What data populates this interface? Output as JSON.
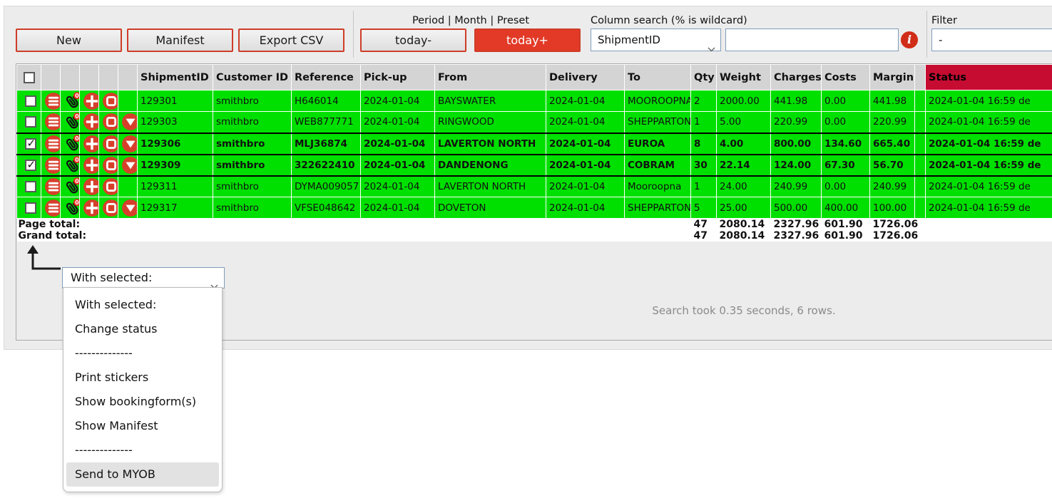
{
  "toolbar": {
    "new_label": "New",
    "manifest_label": "Manifest",
    "export_csv_label": "Export CSV",
    "period_preset_label": "Period | Month | Preset",
    "today_minus_label": "today-",
    "today_plus_label": "today+",
    "column_search_label": "Column search (% is wildcard)",
    "column_search_selected": "ShipmentID",
    "column_search_value": "",
    "info_icon_glyph": "i",
    "filter_label": "Filter",
    "filter_selected": "-"
  },
  "table": {
    "headers": [
      "ShipmentID",
      "Customer ID",
      "Reference",
      "Pick-up",
      "From",
      "Delivery",
      "To",
      "Qty",
      "Weight",
      "Charges",
      "Costs",
      "Margin",
      "Status"
    ],
    "icons": {
      "paperclip_badge": "0"
    },
    "rows": [
      {
        "selected": false,
        "has_triangle": false,
        "shipment_id": "129301",
        "customer_id": "smithbro",
        "reference": "H646014",
        "pickup": "2024-01-04",
        "from": "BAYSWATER",
        "delivery": "2024-01-04",
        "to": "MOOROOPNA",
        "qty": "2",
        "weight": "2000.00",
        "charges": "441.98",
        "costs": "0.00",
        "margin": "441.98",
        "status": "2024-01-04 16:59 de"
      },
      {
        "selected": false,
        "has_triangle": true,
        "shipment_id": "129303",
        "customer_id": "smithbro",
        "reference": "WEB877771",
        "pickup": "2024-01-04",
        "from": "RINGWOOD",
        "delivery": "2024-01-04",
        "to": "SHEPPARTON",
        "qty": "1",
        "weight": "5.00",
        "charges": "220.99",
        "costs": "0.00",
        "margin": "220.99",
        "status": "2024-01-04 16:59 de"
      },
      {
        "selected": true,
        "has_triangle": true,
        "shipment_id": "129306",
        "customer_id": "smithbro",
        "reference": "MLJ36874",
        "pickup": "2024-01-04",
        "from": "LAVERTON NORTH",
        "delivery": "2024-01-04",
        "to": "EUROA",
        "qty": "8",
        "weight": "4.00",
        "charges": "800.00",
        "costs": "134.60",
        "margin": "665.40",
        "status": "2024-01-04 16:59 de"
      },
      {
        "selected": true,
        "has_triangle": true,
        "shipment_id": "129309",
        "customer_id": "smithbro",
        "reference": "322622410",
        "pickup": "2024-01-04",
        "from": "DANDENONG",
        "delivery": "2024-01-04",
        "to": "COBRAM",
        "qty": "30",
        "weight": "22.14",
        "charges": "124.00",
        "costs": "67.30",
        "margin": "56.70",
        "status": "2024-01-04 16:59 de"
      },
      {
        "selected": false,
        "has_triangle": false,
        "shipment_id": "129311",
        "customer_id": "smithbro",
        "reference": "DYMA009057",
        "pickup": "2024-01-04",
        "from": "LAVERTON NORTH",
        "delivery": "2024-01-04",
        "to": "Mooroopna",
        "qty": "1",
        "weight": "24.00",
        "charges": "240.99",
        "costs": "0.00",
        "margin": "240.99",
        "status": "2024-01-04 16:59 de"
      },
      {
        "selected": false,
        "has_triangle": true,
        "shipment_id": "129317",
        "customer_id": "smithbro",
        "reference": "VFSE048642",
        "pickup": "2024-01-04",
        "from": "DOVETON",
        "delivery": "2024-01-04",
        "to": "SHEPPARTON",
        "qty": "5",
        "weight": "25.00",
        "charges": "500.00",
        "costs": "400.00",
        "margin": "100.00",
        "status": "2024-01-04 16:59 de"
      }
    ]
  },
  "totals": {
    "page_label": "Page total:",
    "grand_label": "Grand total:",
    "page": {
      "qty": "47",
      "weight": "2080.14",
      "charges": "2327.96",
      "costs": "601.90",
      "margin": "1726.06"
    },
    "grand": {
      "qty": "47",
      "weight": "2080.14",
      "charges": "2327.96",
      "costs": "601.90",
      "margin": "1726.06"
    }
  },
  "footer": {
    "with_selected_value": "With selected:",
    "menu_items": [
      {
        "label": "With selected:",
        "separator": false,
        "highlighted": false
      },
      {
        "label": "Change status",
        "separator": false,
        "highlighted": false
      },
      {
        "label": "--------------",
        "separator": true,
        "highlighted": false
      },
      {
        "label": "Print stickers",
        "separator": false,
        "highlighted": false
      },
      {
        "label": "Show bookingform(s)",
        "separator": false,
        "highlighted": false
      },
      {
        "label": "Show Manifest",
        "separator": false,
        "highlighted": false
      },
      {
        "label": "--------------",
        "separator": true,
        "highlighted": false
      },
      {
        "label": "Send to MYOB",
        "separator": false,
        "highlighted": true
      }
    ],
    "search_info": "Search took 0.35 seconds, 6 rows."
  },
  "colors": {
    "row_green": "#00e000",
    "status_header_red": "#c60c30",
    "accent_red": "#e23a27",
    "button_border_red": "#cd3d28"
  }
}
